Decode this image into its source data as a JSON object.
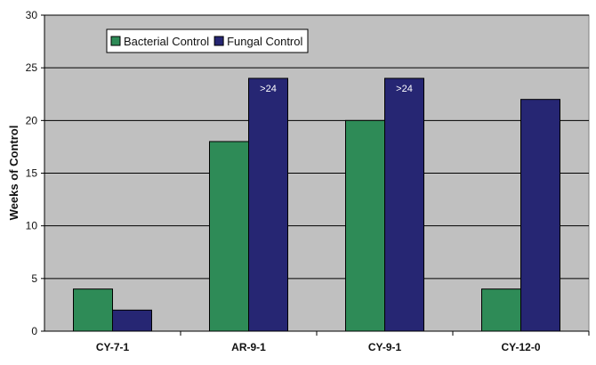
{
  "chart_data": {
    "type": "bar",
    "categories": [
      "CY-7-1",
      "AR-9-1",
      "CY-9-1",
      "CY-12-0"
    ],
    "series": [
      {
        "name": "Bacterial Control",
        "values": [
          4,
          18,
          20,
          4
        ],
        "color": "#2e8b57"
      },
      {
        "name": "Fungal Control",
        "values": [
          2,
          24,
          24,
          22
        ],
        "color": "#262673"
      }
    ],
    "data_labels": [
      {
        "series": 1,
        "category": 1,
        "text": ">24"
      },
      {
        "series": 1,
        "category": 2,
        "text": ">24"
      }
    ],
    "title": "",
    "xlabel": "",
    "ylabel": "Weeks of Control",
    "ylim": [
      0,
      30
    ],
    "yticks": [
      0,
      5,
      10,
      15,
      20,
      25,
      30
    ],
    "grid": true,
    "legend": "top-left",
    "plot_background": "#c0c0c0",
    "gridline_color": "#000000",
    "border_color": "#808080"
  }
}
